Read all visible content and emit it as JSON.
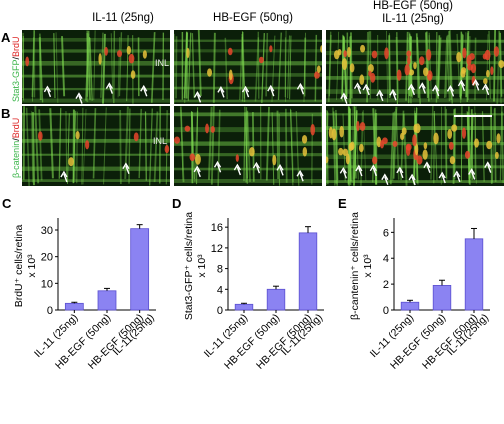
{
  "columns": [
    {
      "line1": "IL-11 (25ng)",
      "line2": ""
    },
    {
      "line1": "HB-EGF (50ng)",
      "line2": ""
    },
    {
      "line1": "HB-EGF (50ng)",
      "line2": "IL-11 (25ng)"
    }
  ],
  "rows": [
    {
      "letter": "A",
      "label_green": "Stat3-GFP",
      "label_sep": "/",
      "label_red": "BrdU"
    },
    {
      "letter": "B",
      "label_green": "β-catenin",
      "label_sep": "/",
      "label_red": "BrdU"
    }
  ],
  "inl_label": "INL",
  "micrographs": {
    "A": [
      {
        "arrows": 4
      },
      {
        "arrows": 5
      },
      {
        "arrows": 12
      }
    ],
    "B": [
      {
        "arrows": 2
      },
      {
        "arrows": 6
      },
      {
        "arrows": 11
      }
    ]
  },
  "colors": {
    "bar_fill": "#8b83f2",
    "bar_stroke": "#5a4fd0",
    "green": "#7dd84f",
    "red": "#e8452c"
  },
  "chart_data": [
    {
      "panel": "C",
      "type": "bar",
      "categories": [
        "IL-11 (25ng)",
        "HB-EGF (50ng)",
        "HB-EGF (50ng) IL-11(25ng)"
      ],
      "values": [
        2.5,
        7.2,
        30.5
      ],
      "errors": [
        0.4,
        0.9,
        1.5
      ],
      "ylabel_line1": "BrdU⁺ cells/retina",
      "ylabel_line2": "x 10³",
      "ylim": [
        0,
        33
      ],
      "yticks": [
        0,
        10,
        20,
        30
      ]
    },
    {
      "panel": "D",
      "type": "bar",
      "categories": [
        "IL-11 (25ng)",
        "HB-EGF (50ng)",
        "HB-EGF (50ng) IL-11(25ng)"
      ],
      "values": [
        1.1,
        4.0,
        14.9
      ],
      "errors": [
        0.2,
        0.6,
        1.2
      ],
      "ylabel_line1": "Stat3-GFP⁺ cells/retina",
      "ylabel_line2": "x 10³",
      "ylim": [
        0,
        17
      ],
      "yticks": [
        0,
        4,
        8,
        12,
        16
      ]
    },
    {
      "panel": "E",
      "type": "bar",
      "categories": [
        "IL-11 (25ng)",
        "HB-EGF (50ng)",
        "HB-EGF (50ng) IL-11(25ng)"
      ],
      "values": [
        0.6,
        1.9,
        5.5
      ],
      "errors": [
        0.15,
        0.4,
        0.8
      ],
      "ylabel_line1": "β-cantenin⁺ cells/retina",
      "ylabel_line2": "x 10³",
      "ylim": [
        0,
        6.8
      ],
      "yticks": [
        0,
        2,
        4,
        6
      ]
    }
  ]
}
